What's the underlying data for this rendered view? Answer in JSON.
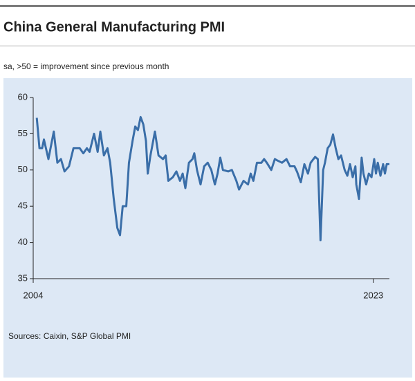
{
  "chart_data": {
    "type": "line",
    "title": "China General Manufacturing PMI",
    "subtitle": "sa, >50 = improvement since previous month",
    "source": "Sources: Caixin, S&P Global PMI",
    "color": "#3a6ea8",
    "xlim": [
      2004,
      2023.9
    ],
    "xticks": [
      2004,
      2023
    ],
    "ylim": [
      35,
      60
    ],
    "yticks": [
      35,
      40,
      45,
      50,
      55,
      60
    ],
    "grid": false,
    "x": [
      2004.2,
      2004.35,
      2004.5,
      2004.6,
      2004.85,
      2005.15,
      2005.35,
      2005.55,
      2005.75,
      2006.0,
      2006.25,
      2006.6,
      2006.8,
      2007.0,
      2007.15,
      2007.4,
      2007.6,
      2007.75,
      2007.95,
      2008.15,
      2008.3,
      2008.5,
      2008.7,
      2008.85,
      2009.0,
      2009.2,
      2009.35,
      2009.55,
      2009.7,
      2009.85,
      2010.0,
      2010.15,
      2010.3,
      2010.4,
      2010.55,
      2010.8,
      2011.0,
      2011.25,
      2011.4,
      2011.55,
      2011.8,
      2012.0,
      2012.2,
      2012.35,
      2012.5,
      2012.7,
      2012.9,
      2013.0,
      2013.15,
      2013.35,
      2013.55,
      2013.75,
      2013.95,
      2014.15,
      2014.3,
      2014.45,
      2014.6,
      2014.9,
      2015.1,
      2015.35,
      2015.5,
      2015.75,
      2016.0,
      2016.15,
      2016.3,
      2016.5,
      2016.75,
      2016.9,
      2017.05,
      2017.3,
      2017.5,
      2017.65,
      2017.9,
      2018.15,
      2018.35,
      2018.6,
      2018.75,
      2018.95,
      2019.15,
      2019.35,
      2019.5,
      2019.75,
      2019.9,
      2020.05,
      2020.2,
      2020.3,
      2020.45,
      2020.6,
      2020.75,
      2020.9,
      2021.05,
      2021.2,
      2021.4,
      2021.55,
      2021.7,
      2021.85,
      2022.0,
      2022.05,
      2022.2,
      2022.35,
      2022.45,
      2022.6,
      2022.75,
      2022.9,
      2023.05,
      2023.15,
      2023.25,
      2023.4,
      2023.55,
      2023.65,
      2023.75,
      2023.9
    ],
    "values": [
      57.2,
      53,
      53,
      54.2,
      51.5,
      55.3,
      51,
      51.5,
      49.8,
      50.5,
      53,
      53,
      52.3,
      53,
      52.5,
      55,
      52.5,
      55.3,
      52,
      53,
      51,
      46,
      42,
      41,
      45,
      45,
      51,
      54,
      56,
      55.5,
      57.3,
      56.3,
      54,
      49.5,
      52,
      55.3,
      52,
      51.5,
      52,
      48.5,
      49,
      49.8,
      48.5,
      49.5,
      47.5,
      51,
      51.5,
      52.3,
      50,
      48,
      50.5,
      51,
      50,
      48,
      49.5,
      51.7,
      50,
      49.8,
      50,
      48.5,
      47.3,
      48.5,
      48,
      49.5,
      48.5,
      51,
      51,
      51.5,
      51,
      50,
      51.5,
      51.3,
      51,
      51.5,
      50.5,
      50.5,
      49.7,
      48.3,
      50.8,
      49.5,
      51,
      51.8,
      51.5,
      40.3,
      50,
      51,
      53,
      53.5,
      54.9,
      53,
      51.5,
      52,
      50,
      49.2,
      50.8,
      49,
      50.5,
      48,
      46,
      51.7,
      49.5,
      48,
      49.5,
      49,
      51.5,
      49.5,
      51,
      49.2,
      50.8,
      49.5,
      50.8,
      50.8
    ]
  }
}
